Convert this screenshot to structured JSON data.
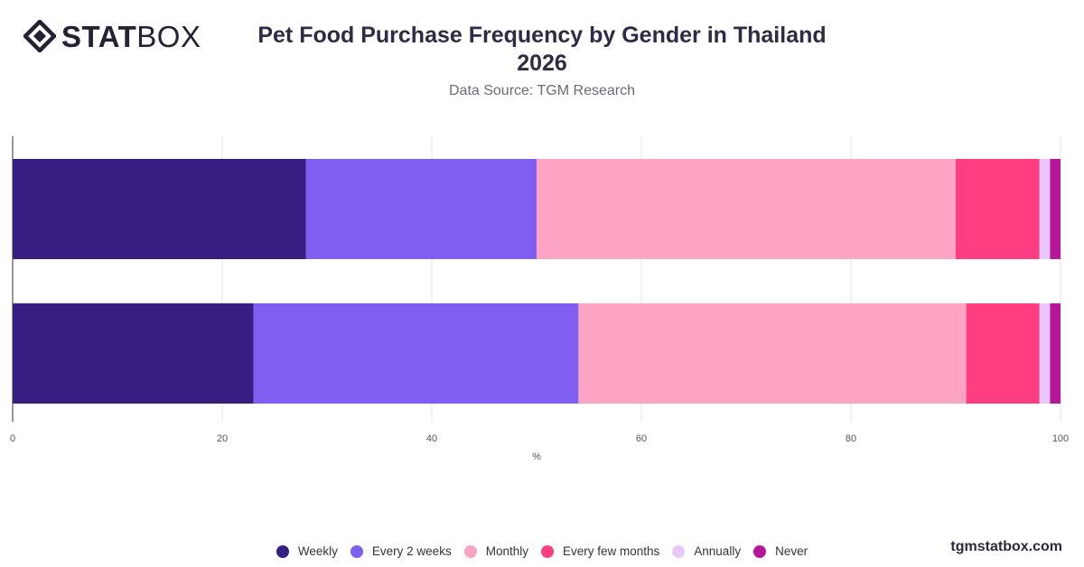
{
  "brand": {
    "bold": "STAT",
    "light": "BOX"
  },
  "title_line1": "Pet Food Purchase Frequency by Gender in Thailand",
  "title_line2": "2026",
  "subtitle": "Data Source: TGM Research",
  "footer": "tgmstatbox.com",
  "chart_data": {
    "type": "bar",
    "orientation": "horizontal",
    "stacked": true,
    "categories": [
      "",
      ""
    ],
    "series": [
      {
        "name": "Weekly",
        "color": "#371e83",
        "values": [
          28,
          23
        ]
      },
      {
        "name": "Every 2 weeks",
        "color": "#7e5ff0",
        "values": [
          22,
          31
        ]
      },
      {
        "name": "Monthly",
        "color": "#fda3c3",
        "values": [
          40,
          37
        ]
      },
      {
        "name": "Every few months",
        "color": "#ff3e81",
        "values": [
          8,
          7
        ]
      },
      {
        "name": "Annually",
        "color": "#e8c8fb",
        "values": [
          1,
          1
        ]
      },
      {
        "name": "Never",
        "color": "#b5169a",
        "values": [
          1,
          1
        ]
      }
    ],
    "xlim": [
      0,
      100
    ],
    "xticks": [
      0,
      20,
      40,
      60,
      80,
      100
    ],
    "xlabel": "%",
    "grid": true,
    "legend": "bottom"
  }
}
